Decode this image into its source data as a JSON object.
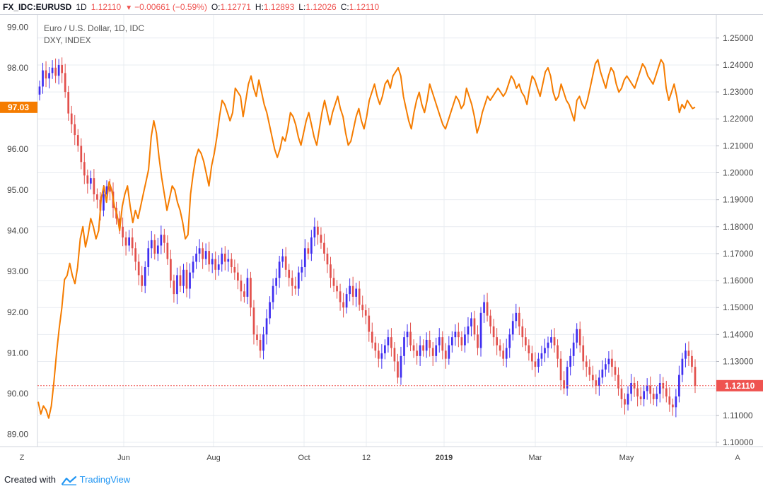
{
  "header": {
    "symbol": "FX_IDC:EURUSD",
    "interval": "1D",
    "last": "1.12110",
    "change": "−0.00661 (−0.59%)",
    "open_label": "O:",
    "open": "1.12771",
    "high_label": "H:",
    "high": "1.12893",
    "low_label": "L:",
    "low": "1.12026",
    "close_label": "C:",
    "close": "1.12110"
  },
  "legend": {
    "main": "Euro / U.S. Dollar, 1D, IDC",
    "overlay": "DXY, INDEX"
  },
  "badges": {
    "dxy_last": "97.03",
    "eurusd_last": "1.12110"
  },
  "buttons": {
    "zoom": "Z",
    "auto": "A"
  },
  "footer": {
    "created_with": "Created with",
    "brand": "TradingView"
  },
  "colors": {
    "candle_up": "#3f2ef0",
    "candle_down": "#e2504c",
    "dxy_line": "#f57c00",
    "last_price": "#ef5350",
    "grid": "#e8ecf1"
  },
  "chart_data": {
    "type": "candlestick+line",
    "x_tick_labels": [
      "Jun",
      "Aug",
      "Oct",
      "12",
      "2019",
      "Mar",
      "May"
    ],
    "left_axis": {
      "series": "DXY, INDEX",
      "range": [
        88.7,
        99.3
      ],
      "ticks": [
        "99.00",
        "98.00",
        "97.00",
        "96.00",
        "95.00",
        "94.00",
        "93.00",
        "92.00",
        "91.00",
        "90.00",
        "89.00"
      ]
    },
    "right_axis": {
      "series": "Euro / U.S. Dollar, 1D, IDC",
      "range": [
        1.0984,
        1.2586
      ],
      "ticks": [
        "1.25000",
        "1.24000",
        "1.23000",
        "1.22000",
        "1.21000",
        "1.20000",
        "1.19000",
        "1.18000",
        "1.17000",
        "1.16000",
        "1.15000",
        "1.14000",
        "1.13000",
        "1.12000",
        "1.11000",
        "1.10000"
      ]
    },
    "eurusd_close": [
      1.232,
      1.238,
      1.235,
      1.237,
      1.239,
      1.236,
      1.24,
      1.237,
      1.23,
      1.222,
      1.218,
      1.214,
      1.21,
      1.204,
      1.199,
      1.196,
      1.198,
      1.192,
      1.19,
      1.186,
      1.192,
      1.195,
      1.193,
      1.187,
      1.183,
      1.18,
      1.176,
      1.173,
      1.176,
      1.172,
      1.167,
      1.162,
      1.158,
      1.165,
      1.172,
      1.175,
      1.17,
      1.173,
      1.177,
      1.174,
      1.168,
      1.16,
      1.155,
      1.162,
      1.158,
      1.164,
      1.157,
      1.163,
      1.167,
      1.17,
      1.172,
      1.168,
      1.171,
      1.166,
      1.168,
      1.164,
      1.166,
      1.17,
      1.167,
      1.168,
      1.165,
      1.163,
      1.16,
      1.156,
      1.154,
      1.161,
      1.15,
      1.14,
      1.138,
      1.134,
      1.14,
      1.146,
      1.152,
      1.158,
      1.161,
      1.167,
      1.169,
      1.164,
      1.161,
      1.158,
      1.157,
      1.163,
      1.165,
      1.172,
      1.17,
      1.176,
      1.18,
      1.177,
      1.174,
      1.17,
      1.166,
      1.161,
      1.158,
      1.156,
      1.152,
      1.15,
      1.155,
      1.158,
      1.154,
      1.157,
      1.151,
      1.149,
      1.147,
      1.141,
      1.137,
      1.134,
      1.131,
      1.133,
      1.136,
      1.139,
      1.135,
      1.13,
      1.124,
      1.132,
      1.139,
      1.141,
      1.136,
      1.134,
      1.132,
      1.136,
      1.134,
      1.138,
      1.135,
      1.132,
      1.136,
      1.139,
      1.134,
      1.131,
      1.136,
      1.139,
      1.141,
      1.139,
      1.136,
      1.14,
      1.143,
      1.146,
      1.14,
      1.135,
      1.148,
      1.152,
      1.147,
      1.143,
      1.139,
      1.136,
      1.134,
      1.131,
      1.135,
      1.14,
      1.145,
      1.148,
      1.143,
      1.139,
      1.136,
      1.133,
      1.13,
      1.128,
      1.131,
      1.133,
      1.135,
      1.137,
      1.139,
      1.136,
      1.131,
      1.123,
      1.12,
      1.128,
      1.132,
      1.137,
      1.142,
      1.136,
      1.13,
      1.128,
      1.125,
      1.123,
      1.121,
      1.124,
      1.127,
      1.129,
      1.131,
      1.128,
      1.125,
      1.12,
      1.116,
      1.114,
      1.118,
      1.122,
      1.12,
      1.117,
      1.116,
      1.119,
      1.121,
      1.118,
      1.116,
      1.118,
      1.122,
      1.12,
      1.117,
      1.114,
      1.113,
      1.117,
      1.125,
      1.131,
      1.134,
      1.132,
      1.128,
      1.121
    ],
    "dxy": [
      89.8,
      89.5,
      89.7,
      89.6,
      89.4,
      89.7,
      90.3,
      91.0,
      91.6,
      92.1,
      92.8,
      92.9,
      93.2,
      92.9,
      92.7,
      93.1,
      93.8,
      94.1,
      93.6,
      93.9,
      94.3,
      94.1,
      93.8,
      94.0,
      94.8,
      95.1,
      94.7,
      95.2,
      95.0,
      94.6,
      94.4,
      94.0,
      94.6,
      94.9,
      95.1,
      94.6,
      94.2,
      94.5,
      94.3,
      94.6,
      94.9,
      95.2,
      95.5,
      96.3,
      96.7,
      96.4,
      95.8,
      95.3,
      94.9,
      94.5,
      94.8,
      95.1,
      95.0,
      94.7,
      94.5,
      94.2,
      93.8,
      93.9,
      94.9,
      95.4,
      95.8,
      96.0,
      95.9,
      95.7,
      95.4,
      95.1,
      95.6,
      95.9,
      96.3,
      96.8,
      97.2,
      97.1,
      96.9,
      96.7,
      96.9,
      97.5,
      97.4,
      97.3,
      96.8,
      97.2,
      97.6,
      97.8,
      97.5,
      97.3,
      97.7,
      97.4,
      97.1,
      96.9,
      96.6,
      96.3,
      96.0,
      95.8,
      96.0,
      96.3,
      96.2,
      96.5,
      96.9,
      96.8,
      96.6,
      96.3,
      96.1,
      96.4,
      96.7,
      96.9,
      96.6,
      96.3,
      96.1,
      96.5,
      96.9,
      97.2,
      96.9,
      96.6,
      96.9,
      97.1,
      97.3,
      97.0,
      96.8,
      96.4,
      96.1,
      96.2,
      96.5,
      96.8,
      97.0,
      96.7,
      96.5,
      96.8,
      97.2,
      97.4,
      97.6,
      97.3,
      97.1,
      97.3,
      97.6,
      97.7,
      97.5,
      97.8,
      97.9,
      98.0,
      97.8,
      97.3,
      97.0,
      96.7,
      96.5,
      96.9,
      97.2,
      97.4,
      97.1,
      96.9,
      97.2,
      97.6,
      97.4,
      97.2,
      97.0,
      96.8,
      96.6,
      96.5,
      96.7,
      96.9,
      97.1,
      97.3,
      97.2,
      97.0,
      97.1,
      97.5,
      97.3,
      97.1,
      96.8,
      96.4,
      96.6,
      96.9,
      97.1,
      97.3,
      97.2,
      97.3,
      97.4,
      97.5,
      97.4,
      97.3,
      97.4,
      97.6,
      97.8,
      97.7,
      97.5,
      97.6,
      97.4,
      97.3,
      97.1,
      97.5,
      97.8,
      97.7,
      97.5,
      97.3,
      97.6,
      97.9,
      98.0,
      97.8,
      97.4,
      97.2,
      97.3,
      97.6,
      97.4,
      97.2,
      97.1,
      96.9,
      96.7,
      97.2,
      97.3,
      97.1,
      97.0,
      97.2,
      97.5,
      97.8,
      98.1,
      98.2,
      97.9,
      97.7,
      97.5,
      97.8,
      98.0,
      97.9,
      97.6,
      97.4,
      97.5,
      97.7,
      97.8,
      97.7,
      97.6,
      97.5,
      97.7,
      97.9,
      98.1,
      98.0,
      97.8,
      97.7,
      97.6,
      97.8,
      98.0,
      98.2,
      98.1,
      97.5,
      97.2,
      97.4,
      97.6,
      97.3,
      96.9,
      97.1,
      97.0,
      97.2,
      97.1,
      97.0,
      97.03
    ]
  }
}
